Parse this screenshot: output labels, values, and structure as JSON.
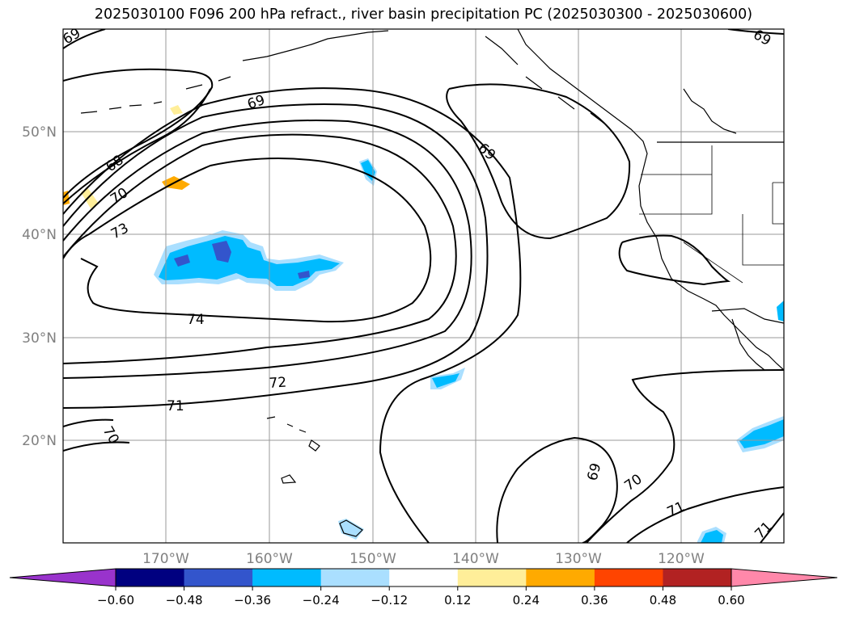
{
  "title": "2025030100 F096 200 hPa refract., river basin precipitation PC (2025030300 - 2025030600)",
  "lat_labels": [
    "50°N",
    "40°N",
    "30°N",
    "20°N"
  ],
  "lon_labels": [
    "170°W",
    "160°W",
    "150°W",
    "140°W",
    "130°W",
    "120°W"
  ],
  "contour_labels": [
    "69",
    "69",
    "69",
    "68",
    "70",
    "73",
    "74",
    "72",
    "71",
    "70",
    "69",
    "70",
    "71",
    "71",
    "69"
  ],
  "colorbar": {
    "tick_labels": [
      "−0.60",
      "−0.48",
      "−0.36",
      "−0.24",
      "−0.12",
      "0.12",
      "0.24",
      "0.36",
      "0.48",
      "0.60"
    ],
    "colors": [
      "#9933cc",
      "#000080",
      "#3355cc",
      "#00bbff",
      "#aadfff",
      "#ffffff",
      "#ffee99",
      "#ffaa00",
      "#ff4400",
      "#b22222",
      "#ff88aa"
    ],
    "under_color": "#9933cc",
    "over_color": "#ff88aa"
  },
  "colors": {
    "contour": "#000000",
    "grid": "#999999",
    "axis_label": "#808080",
    "coast": "#000000"
  }
}
